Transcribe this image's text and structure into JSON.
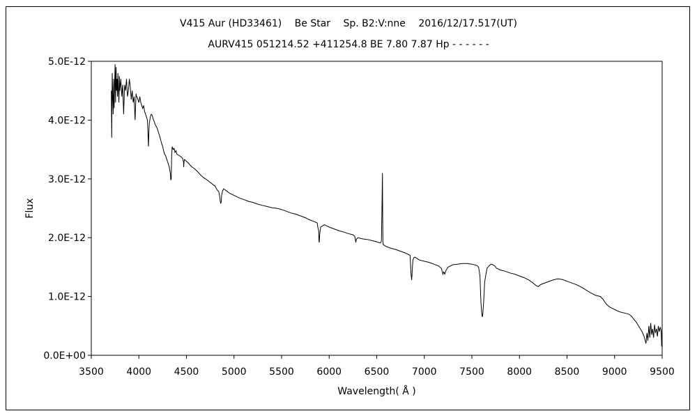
{
  "chart_data": {
    "type": "line",
    "title": "V415 Aur (HD33461)　 Be Star　 Sp. B2:V:nne　 2016/12/17.517(UT)",
    "subtitle": "AURV415 051214.52 +411254.8 BE 7.80 7.87 Hp - - - - - -",
    "xlabel": "Wavelength( Å )",
    "ylabel": "Flux",
    "xlim": [
      3500,
      9500
    ],
    "ylim": [
      0,
      5e-12
    ],
    "x_ticks": [
      3500,
      4000,
      4500,
      5000,
      5500,
      6000,
      6500,
      7000,
      7500,
      8000,
      8500,
      9000,
      9500
    ],
    "x_tick_labels": [
      "3500",
      "4000",
      "4500",
      "5000",
      "5500",
      "6000",
      "6500",
      "7000",
      "7500",
      "8000",
      "8500",
      "9000",
      "9500"
    ],
    "y_ticks": [
      0,
      1e-12,
      2e-12,
      3e-12,
      4e-12,
      5e-12
    ],
    "y_tick_labels": [
      "0.0E+00",
      "1.0E-12",
      "2.0E-12",
      "3.0E-12",
      "4.0E-12",
      "5.0E-12"
    ],
    "grid": false,
    "legend": "none",
    "line_color": "#000000",
    "series": [
      {
        "x": [
          3710,
          3715,
          3720,
          3725,
          3730,
          3735,
          3740,
          3745,
          3750,
          3755,
          3760,
          3765,
          3770,
          3775,
          3780,
          3785,
          3790,
          3795,
          3800,
          3810,
          3820,
          3830,
          3840,
          3850,
          3860,
          3870,
          3880,
          3890,
          3900,
          3910,
          3920,
          3930,
          3940,
          3950,
          3960,
          3970,
          3975,
          3980,
          3990,
          4000,
          4010,
          4020,
          4030,
          4040,
          4050,
          4060,
          4070,
          4080,
          4090,
          4095,
          4101,
          4105,
          4110,
          4120,
          4130,
          4140,
          4150,
          4160,
          4170,
          4180,
          4190,
          4200,
          4210,
          4220,
          4230,
          4240,
          4250,
          4260,
          4270,
          4280,
          4290,
          4300,
          4310,
          4320,
          4330,
          4335,
          4340,
          4345,
          4350,
          4360,
          4370,
          4380,
          4390,
          4400,
          4420,
          4440,
          4460,
          4470,
          4471,
          4475,
          4480,
          4500,
          4520,
          4540,
          4560,
          4580,
          4600,
          4620,
          4640,
          4660,
          4680,
          4700,
          4720,
          4740,
          4760,
          4780,
          4800,
          4820,
          4840,
          4850,
          4855,
          4861,
          4866,
          4870,
          4880,
          4890,
          4900,
          4920,
          4950,
          5000,
          5050,
          5100,
          5150,
          5200,
          5250,
          5300,
          5350,
          5400,
          5450,
          5500,
          5550,
          5600,
          5650,
          5700,
          5750,
          5800,
          5850,
          5875,
          5880,
          5890,
          5893,
          5896,
          5900,
          5910,
          5950,
          6000,
          6050,
          6100,
          6150,
          6200,
          6250,
          6270,
          6280,
          6285,
          6300,
          6350,
          6400,
          6450,
          6500,
          6520,
          6540,
          6550,
          6555,
          6560,
          6563,
          6565,
          6568,
          6572,
          6580,
          6600,
          6650,
          6700,
          6750,
          6800,
          6850,
          6860,
          6867,
          6870,
          6875,
          6880,
          6890,
          6900,
          6920,
          6950,
          7000,
          7050,
          7100,
          7150,
          7180,
          7195,
          7205,
          7215,
          7230,
          7250,
          7300,
          7350,
          7400,
          7450,
          7500,
          7550,
          7570,
          7585,
          7595,
          7605,
          7610,
          7615,
          7625,
          7635,
          7650,
          7660,
          7680,
          7700,
          7720,
          7740,
          7760,
          7800,
          7850,
          7900,
          7950,
          8000,
          8050,
          8100,
          8150,
          8180,
          8200,
          8220,
          8250,
          8300,
          8350,
          8400,
          8450,
          8500,
          8550,
          8600,
          8650,
          8700,
          8750,
          8800,
          8850,
          8880,
          8900,
          8920,
          8950,
          9000,
          9050,
          9100,
          9150,
          9180,
          9200,
          9230,
          9260,
          9290,
          9310,
          9330,
          9340,
          9350,
          9360,
          9370,
          9380,
          9390,
          9400,
          9410,
          9420,
          9430,
          9440,
          9450,
          9460,
          9470,
          9480,
          9490,
          9495,
          9500
        ],
        "y": [
          4.5e-12,
          3.7e-12,
          4.8e-12,
          4.4e-12,
          4.1e-12,
          4.7e-12,
          4.2e-12,
          4.6e-12,
          4.95e-12,
          4.3e-12,
          4.9e-12,
          4.5e-12,
          4.7e-12,
          4.4e-12,
          4.8e-12,
          4.5e-12,
          4.3e-12,
          4.75e-12,
          4.5e-12,
          4.7e-12,
          4.4e-12,
          4.6e-12,
          4.1e-12,
          4.6e-12,
          4.5e-12,
          4.7e-12,
          4.4e-12,
          4.5e-12,
          4.7e-12,
          4.55e-12,
          4.35e-12,
          4.5e-12,
          4.3e-12,
          4.4e-12,
          4e-12,
          4.45e-12,
          4.4e-12,
          4.4e-12,
          4.35e-12,
          4.3e-12,
          4.4e-12,
          4.3e-12,
          4.25e-12,
          4.2e-12,
          4.25e-12,
          4.15e-12,
          4.1e-12,
          4.05e-12,
          4e-12,
          3.8e-12,
          3.55e-12,
          3.8e-12,
          3.95e-12,
          4.05e-12,
          4.1e-12,
          4.08e-12,
          4.02e-12,
          3.98e-12,
          3.93e-12,
          3.9e-12,
          3.87e-12,
          3.82e-12,
          3.77e-12,
          3.72e-12,
          3.66e-12,
          3.6e-12,
          3.55e-12,
          3.48e-12,
          3.42e-12,
          3.4e-12,
          3.35e-12,
          3.3e-12,
          3.25e-12,
          3.2e-12,
          3.1e-12,
          2.98e-12,
          3e-12,
          3.4e-12,
          3.55e-12,
          3.5e-12,
          3.52e-12,
          3.45e-12,
          3.48e-12,
          3.42e-12,
          3.4e-12,
          3.38e-12,
          3.35e-12,
          3.28e-12,
          3.2e-12,
          3.3e-12,
          3.33e-12,
          3.3e-12,
          3.27e-12,
          3.23e-12,
          3.2e-12,
          3.18e-12,
          3.15e-12,
          3.12e-12,
          3.08e-12,
          3.05e-12,
          3.02e-12,
          3e-12,
          2.98e-12,
          2.95e-12,
          2.93e-12,
          2.9e-12,
          2.88e-12,
          2.82e-12,
          2.78e-12,
          2.7e-12,
          2.62e-12,
          2.58e-12,
          2.62e-12,
          2.72e-12,
          2.8e-12,
          2.83e-12,
          2.82e-12,
          2.8e-12,
          2.76e-12,
          2.72e-12,
          2.68e-12,
          2.65e-12,
          2.62e-12,
          2.6e-12,
          2.57e-12,
          2.55e-12,
          2.53e-12,
          2.51e-12,
          2.5e-12,
          2.48e-12,
          2.45e-12,
          2.42e-12,
          2.4e-12,
          2.37e-12,
          2.34e-12,
          2.3e-12,
          2.27e-12,
          2.25e-12,
          2.18e-12,
          2.12e-12,
          1.95e-12,
          1.92e-12,
          2.05e-12,
          2.18e-12,
          2.22e-12,
          2.18e-12,
          2.15e-12,
          2.12e-12,
          2.1e-12,
          2.07e-12,
          2.05e-12,
          2.02e-12,
          1.92e-12,
          1.97e-12,
          2e-12,
          1.98e-12,
          1.97e-12,
          1.95e-12,
          1.93e-12,
          1.92e-12,
          1.91e-12,
          1.95e-12,
          2.5e-12,
          3.1e-12,
          2.3e-12,
          1.93e-12,
          1.88e-12,
          1.88e-12,
          1.87e-12,
          1.85e-12,
          1.82e-12,
          1.8e-12,
          1.77e-12,
          1.74e-12,
          1.7e-12,
          1.4e-12,
          1.28e-12,
          1.35e-12,
          1.5e-12,
          1.62e-12,
          1.66e-12,
          1.67e-12,
          1.65e-12,
          1.62e-12,
          1.6e-12,
          1.58e-12,
          1.55e-12,
          1.52e-12,
          1.48e-12,
          1.38e-12,
          1.42e-12,
          1.38e-12,
          1.45e-12,
          1.5e-12,
          1.54e-12,
          1.55e-12,
          1.56e-12,
          1.56e-12,
          1.55e-12,
          1.53e-12,
          1.5e-12,
          1.35e-12,
          9e-13,
          7e-13,
          6.5e-13,
          7e-13,
          9.5e-13,
          1.25e-12,
          1.4e-12,
          1.48e-12,
          1.52e-12,
          1.55e-12,
          1.54e-12,
          1.52e-12,
          1.48e-12,
          1.45e-12,
          1.43e-12,
          1.4e-12,
          1.38e-12,
          1.35e-12,
          1.32e-12,
          1.28e-12,
          1.22e-12,
          1.18e-12,
          1.17e-12,
          1.2e-12,
          1.22e-12,
          1.25e-12,
          1.28e-12,
          1.3e-12,
          1.29e-12,
          1.26e-12,
          1.23e-12,
          1.2e-12,
          1.16e-12,
          1.11e-12,
          1.06e-12,
          1.02e-12,
          1e-12,
          9.5e-13,
          9e-13,
          8.6e-13,
          8.2e-13,
          7.8e-13,
          7.4e-13,
          7.2e-13,
          7e-13,
          6.6e-13,
          6.2e-13,
          5.6e-13,
          4.8e-13,
          4e-13,
          3.2e-13,
          2e-13,
          3.8e-13,
          2.5e-13,
          5e-13,
          3e-13,
          5.5e-13,
          3.5e-13,
          4.5e-13,
          3e-13,
          5.2e-13,
          3.8e-13,
          4.5e-13,
          3.2e-13,
          5e-13,
          4e-13,
          4.8e-13,
          4.2e-13,
          1.5e-13,
          4.5e-13
        ]
      }
    ]
  }
}
